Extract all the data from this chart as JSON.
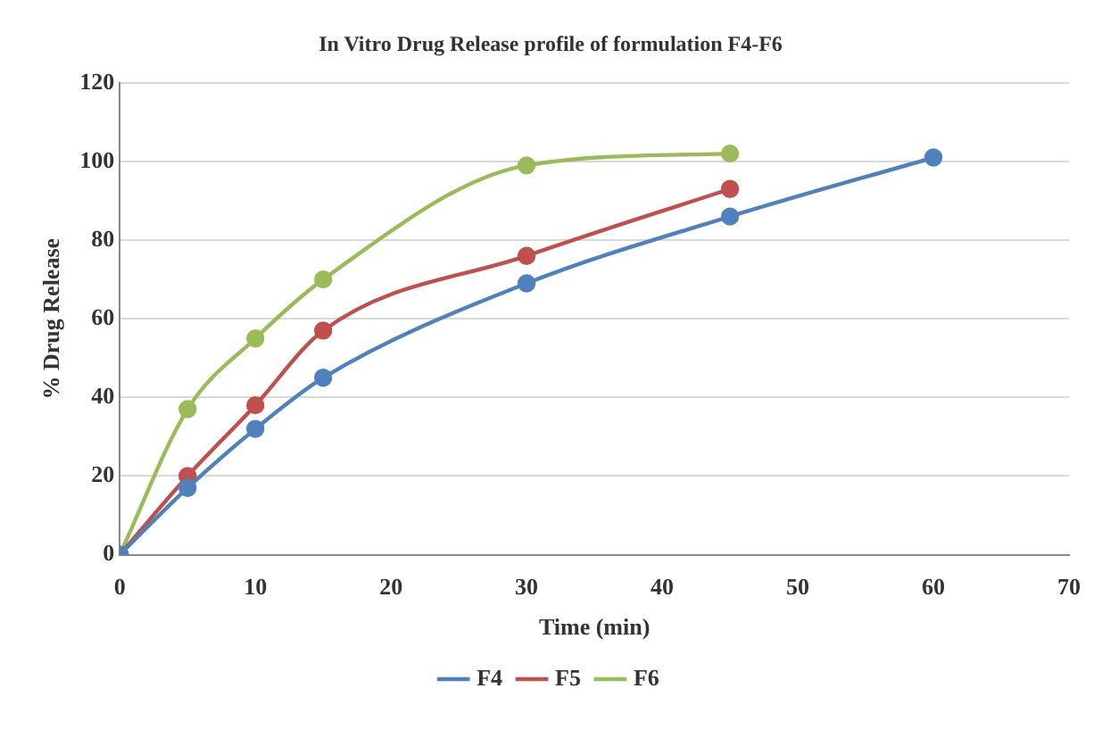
{
  "chart_data": {
    "type": "line",
    "title": "In Vitro Drug Release profile of formulation F4-F6",
    "xlabel": "Time (min)",
    "ylabel": "% Drug Release",
    "series": [
      {
        "name": "F4",
        "color": "#4f81bd",
        "x": [
          0,
          5,
          10,
          15,
          30,
          45,
          60
        ],
        "values": [
          0,
          17,
          32,
          45,
          69,
          86,
          101
        ]
      },
      {
        "name": "F5",
        "color": "#c0504d",
        "x": [
          0,
          5,
          10,
          15,
          30,
          45
        ],
        "values": [
          0,
          20,
          38,
          57,
          76,
          93
        ]
      },
      {
        "name": "F6",
        "color": "#9bbb59",
        "x": [
          0,
          5,
          10,
          15,
          30,
          45
        ],
        "values": [
          0,
          37,
          55,
          70,
          99,
          102
        ]
      }
    ],
    "xlim": [
      0,
      70
    ],
    "xticks": [
      0,
      10,
      20,
      30,
      40,
      50,
      60,
      70
    ],
    "ylim": [
      0,
      120
    ],
    "yticks": [
      0,
      20,
      40,
      60,
      80,
      100,
      120
    ],
    "grid": "y",
    "legend": "bottom",
    "marker": "circle",
    "line_style": "solid"
  }
}
